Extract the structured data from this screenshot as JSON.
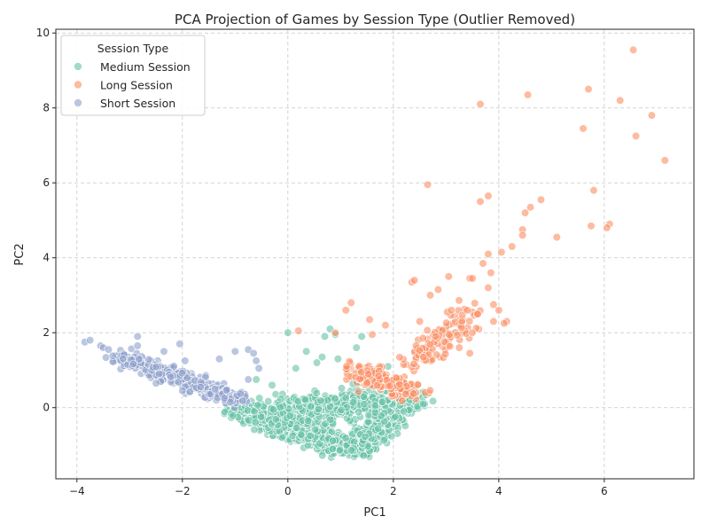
{
  "chart_data": {
    "type": "scatter",
    "title": "PCA Projection of Games by Session Type (Outlier Removed)",
    "xlabel": "PC1",
    "ylabel": "PC2",
    "xlim": [
      -4.4,
      7.7
    ],
    "ylim": [
      -1.9,
      10.1
    ],
    "xticks": [
      -4,
      -2,
      0,
      2,
      4,
      6
    ],
    "yticks": [
      0,
      2,
      4,
      6,
      8,
      10
    ],
    "grid": true,
    "legend": {
      "title": "Session Type",
      "position": "top-left"
    },
    "series": [
      {
        "name": "Medium Session",
        "color": "#66c2a5",
        "clusters": [
          {
            "count": 650,
            "x0": -1.0,
            "y0": -0.05,
            "x1": 1.25,
            "y1": -1.1,
            "spread": 0.28
          },
          {
            "count": 550,
            "x0": 1.25,
            "y0": -1.1,
            "x1": 2.4,
            "y1": 0.35,
            "spread": 0.28
          },
          {
            "count": 400,
            "x0": -0.3,
            "y0": -0.2,
            "x1": 1.8,
            "y1": 0.2,
            "spread": 0.45
          }
        ],
        "points": [
          [
            0.0,
            2.0
          ],
          [
            0.7,
            1.9
          ],
          [
            0.8,
            2.1
          ],
          [
            0.9,
            1.95
          ],
          [
            1.4,
            1.9
          ],
          [
            0.35,
            1.5
          ],
          [
            0.65,
            1.35
          ],
          [
            0.95,
            1.3
          ],
          [
            1.3,
            1.6
          ],
          [
            0.15,
            1.05
          ],
          [
            0.55,
            1.2
          ],
          [
            -0.6,
            0.75
          ],
          [
            -0.3,
            0.6
          ],
          [
            1.9,
            1.1
          ],
          [
            2.2,
            -0.1
          ]
        ]
      },
      {
        "name": "Long Session",
        "color": "#fc8d62",
        "clusters": [
          {
            "count": 160,
            "x0": 1.2,
            "y0": 1.0,
            "x1": 2.4,
            "y1": 0.4,
            "spread": 0.3
          },
          {
            "count": 100,
            "x0": 2.4,
            "y0": 1.2,
            "x1": 3.6,
            "y1": 2.6,
            "spread": 0.35
          }
        ],
        "points": [
          [
            6.55,
            9.55
          ],
          [
            5.7,
            8.5
          ],
          [
            6.3,
            8.2
          ],
          [
            4.55,
            8.35
          ],
          [
            3.65,
            8.1
          ],
          [
            6.9,
            7.8
          ],
          [
            5.6,
            7.45
          ],
          [
            6.6,
            7.25
          ],
          [
            7.15,
            6.6
          ],
          [
            2.65,
            5.95
          ],
          [
            5.8,
            5.8
          ],
          [
            3.8,
            5.65
          ],
          [
            4.8,
            5.55
          ],
          [
            3.65,
            5.5
          ],
          [
            4.6,
            5.35
          ],
          [
            4.5,
            5.2
          ],
          [
            6.1,
            4.9
          ],
          [
            5.75,
            4.85
          ],
          [
            6.05,
            4.8
          ],
          [
            4.45,
            4.75
          ],
          [
            4.45,
            4.6
          ],
          [
            5.1,
            4.55
          ],
          [
            4.25,
            4.3
          ],
          [
            4.05,
            4.15
          ],
          [
            3.8,
            4.1
          ],
          [
            3.7,
            3.85
          ],
          [
            3.85,
            3.6
          ],
          [
            3.45,
            3.45
          ],
          [
            3.5,
            3.45
          ],
          [
            3.05,
            3.5
          ],
          [
            2.35,
            3.35
          ],
          [
            2.4,
            3.4
          ],
          [
            3.8,
            3.2
          ],
          [
            2.7,
            3.0
          ],
          [
            3.9,
            2.75
          ],
          [
            4.0,
            2.6
          ],
          [
            1.2,
            2.8
          ],
          [
            1.1,
            2.6
          ],
          [
            3.4,
            2.6
          ],
          [
            2.85,
            3.15
          ],
          [
            3.3,
            2.3
          ],
          [
            4.15,
            2.3
          ],
          [
            4.1,
            2.25
          ],
          [
            3.6,
            2.5
          ],
          [
            3.9,
            2.3
          ],
          [
            3.1,
            2.6
          ],
          [
            3.5,
            2.0
          ],
          [
            3.25,
            1.6
          ],
          [
            2.5,
            2.3
          ],
          [
            2.8,
            1.9
          ],
          [
            0.2,
            2.05
          ],
          [
            0.9,
            2.0
          ],
          [
            1.55,
            2.35
          ],
          [
            1.85,
            2.2
          ],
          [
            1.6,
            1.95
          ],
          [
            3.45,
            1.45
          ]
        ]
      },
      {
        "name": "Short Session",
        "color": "#8da0cb",
        "clusters": [
          {
            "count": 420,
            "x0": -3.2,
            "y0": 1.35,
            "x1": -0.9,
            "y1": 0.2,
            "spread": 0.22
          }
        ],
        "points": [
          [
            -3.85,
            1.75
          ],
          [
            -3.75,
            1.8
          ],
          [
            -3.55,
            1.65
          ],
          [
            -3.5,
            1.6
          ],
          [
            -3.4,
            1.55
          ],
          [
            -2.85,
            1.9
          ],
          [
            -2.85,
            1.65
          ],
          [
            -2.35,
            1.5
          ],
          [
            -2.05,
            1.7
          ],
          [
            -1.95,
            1.25
          ],
          [
            -1.3,
            1.3
          ],
          [
            -1.0,
            1.5
          ],
          [
            -0.75,
            1.55
          ],
          [
            -0.65,
            1.45
          ],
          [
            -0.6,
            1.25
          ],
          [
            -0.55,
            1.05
          ],
          [
            -0.75,
            0.75
          ],
          [
            -2.5,
            0.65
          ],
          [
            -2.0,
            0.45
          ]
        ]
      }
    ]
  }
}
